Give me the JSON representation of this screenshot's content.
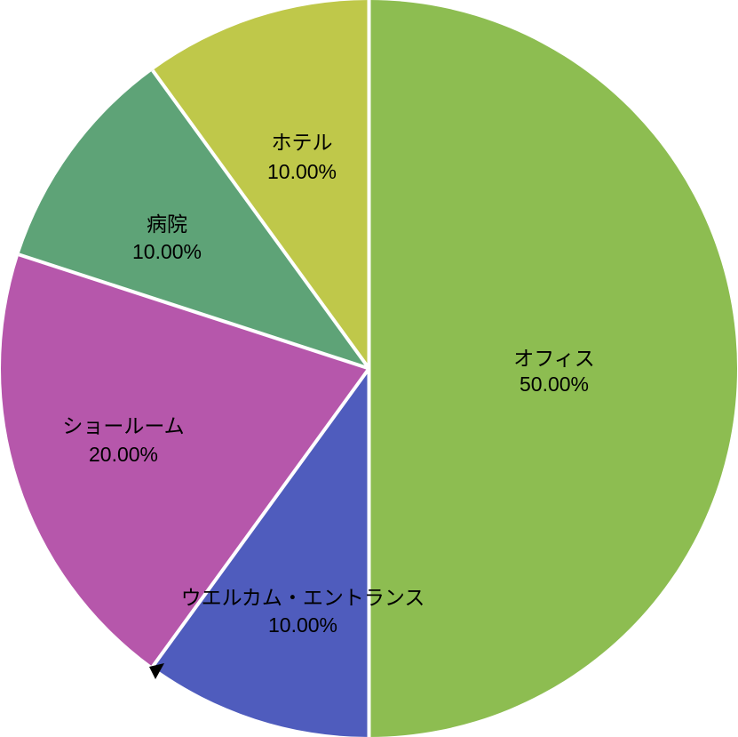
{
  "figure": {
    "background": "#ffffff"
  },
  "chart_data": {
    "type": "pie",
    "title": "",
    "legend": "none",
    "labels_position": "inside",
    "label_format": "category name on first line, percent with two decimals on second line",
    "start_angle_deg": 0,
    "direction": "clockwise",
    "total": 100,
    "categories": [
      "オフィス",
      "ウエルカム・エントランス",
      "ショールーム",
      "病院",
      "ホテル"
    ],
    "values": [
      50,
      10,
      20,
      10,
      10
    ],
    "slices": [
      {
        "label": "オフィス",
        "value": 50,
        "percent_text": "50.00%",
        "color": "#8dbd51"
      },
      {
        "label": "ウエルカム・エントランス",
        "value": 10,
        "percent_text": "10.00%",
        "color": "#4f5cbd"
      },
      {
        "label": "ショールーム",
        "value": 20,
        "percent_text": "20.00%",
        "color": "#b657ab"
      },
      {
        "label": "病院",
        "value": 10,
        "percent_text": "10.00%",
        "color": "#5ea377"
      },
      {
        "label": "ホテル",
        "value": 10,
        "percent_text": "10.00%",
        "color": "#bfc84a"
      }
    ],
    "separator_color": "#ffffff",
    "text_color": "#000000"
  }
}
